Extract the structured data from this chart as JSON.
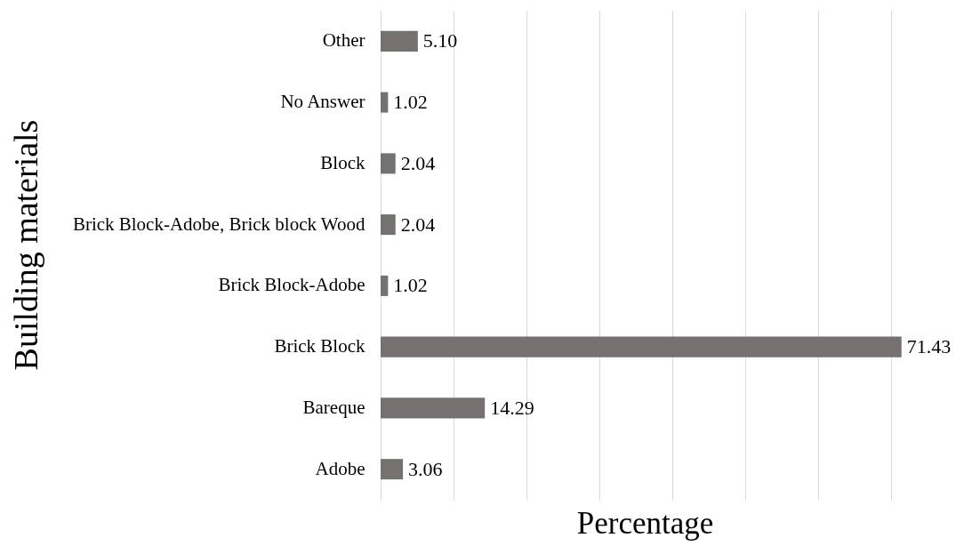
{
  "chart_data": {
    "type": "bar",
    "orientation": "horizontal",
    "categories": [
      "Other",
      "No Answer",
      "Block",
      "Brick Block-Adobe, Brick block Wood",
      "Brick Block-Adobe",
      "Brick Block",
      "Bareque",
      "Adobe"
    ],
    "values": [
      5.1,
      1.02,
      2.04,
      2.04,
      1.02,
      71.43,
      14.29,
      3.06
    ],
    "value_labels": [
      "5.10",
      "1.02",
      "2.04",
      "2.04",
      "1.02",
      "71.43",
      "14.29",
      "3.06"
    ],
    "color": "#767171",
    "xlabel": "Percentage",
    "ylabel": "Building materials",
    "xlim": [
      0,
      80
    ],
    "xticks": [
      {
        "value": 0,
        "label": null
      },
      {
        "value": 10,
        "label": null
      },
      {
        "value": 20,
        "label": null
      },
      {
        "value": 30,
        "label": null
      },
      {
        "value": 40,
        "label": null
      },
      {
        "value": 50,
        "label": null
      },
      {
        "value": 60,
        "label": null
      },
      {
        "value": 70,
        "label": null
      }
    ],
    "grid": "x",
    "tick_labels": "y"
  }
}
